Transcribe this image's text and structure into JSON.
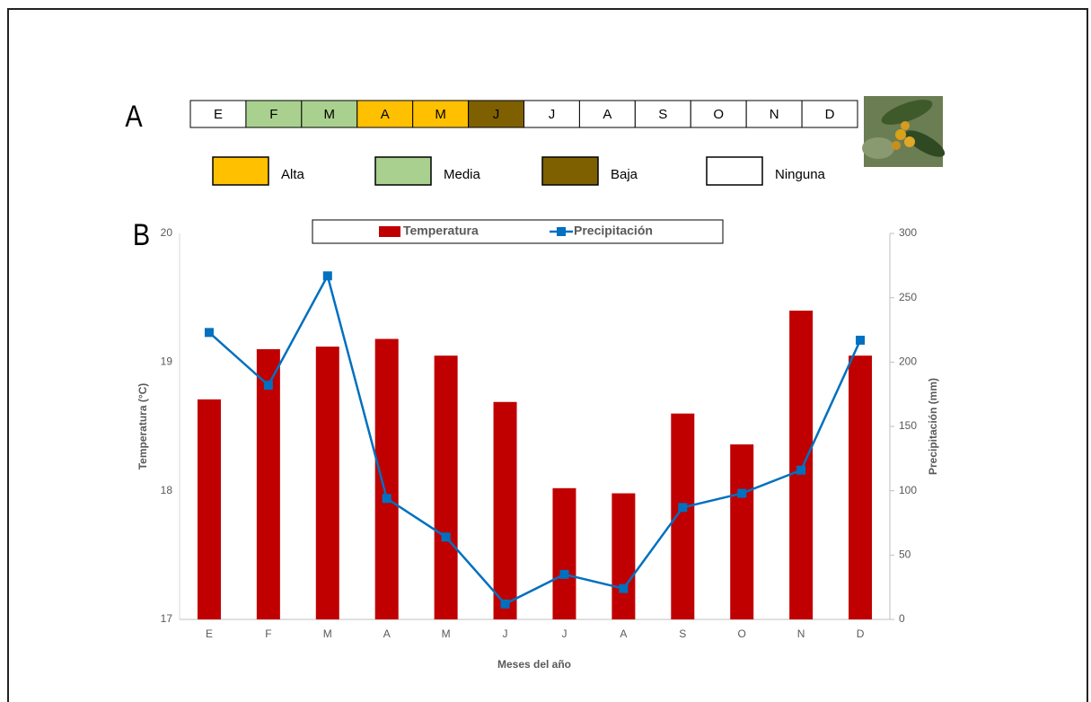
{
  "panel_a": {
    "label": "A",
    "months": [
      "E",
      "F",
      "M",
      "A",
      "M",
      "J",
      "J",
      "A",
      "S",
      "O",
      "N",
      "D"
    ],
    "colors": [
      "#ffffff",
      "#a9d08e",
      "#a9d08e",
      "#ffc000",
      "#ffc000",
      "#7f6000",
      "#ffffff",
      "#ffffff",
      "#ffffff",
      "#ffffff",
      "#ffffff",
      "#ffffff"
    ],
    "legend": [
      {
        "label": "Alta",
        "color": "#ffc000"
      },
      {
        "label": "Media",
        "color": "#a9d08e"
      },
      {
        "label": "Baja",
        "color": "#7f6000"
      },
      {
        "label": "Ninguna",
        "color": "#ffffff"
      }
    ]
  },
  "panel_b": {
    "label": "B"
  },
  "chart_data": {
    "type": "combo",
    "x_label": "Meses del año",
    "y_label": "Temperatura (°C)",
    "y2_label": "Precipitación (mm)",
    "categories": [
      "E",
      "F",
      "M",
      "A",
      "M",
      "J",
      "J",
      "A",
      "S",
      "O",
      "N",
      "D"
    ],
    "series": [
      {
        "name": "Temperatura",
        "type": "bar",
        "color": "#c00000",
        "values": [
          18.71,
          19.1,
          19.12,
          19.18,
          19.05,
          18.69,
          18.02,
          17.98,
          18.6,
          18.36,
          19.4,
          19.05
        ]
      },
      {
        "name": "Precipitación",
        "type": "line",
        "axis": "y2",
        "color": "#0070c0",
        "values": [
          223,
          182,
          267,
          94,
          64,
          12,
          35,
          24,
          87,
          98,
          116,
          217
        ]
      }
    ],
    "ylim": [
      17,
      20
    ],
    "yticks": [
      17,
      18,
      19,
      20
    ],
    "y2lim": [
      0,
      300
    ],
    "y2ticks": [
      0,
      50,
      100,
      150,
      200,
      250,
      300
    ],
    "grid": false,
    "legend": "top"
  }
}
